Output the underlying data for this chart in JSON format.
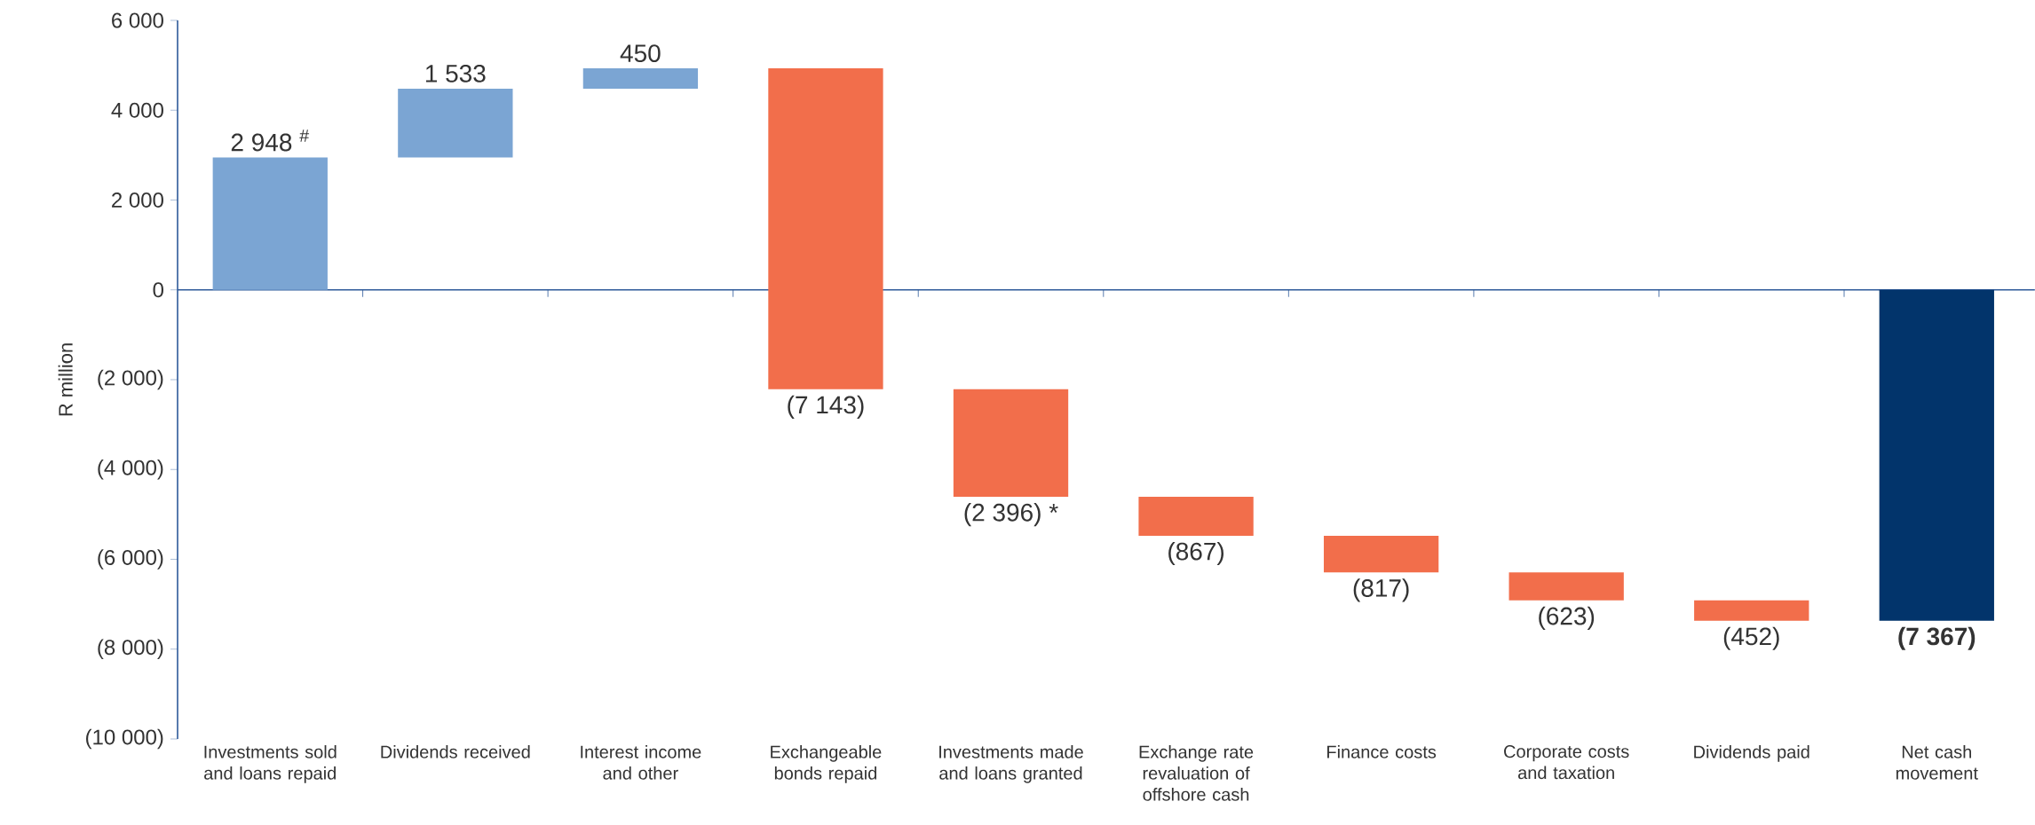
{
  "chart_data": {
    "type": "bar",
    "ylabel": "R million",
    "categories": [
      "Investments sold and loans repaid",
      "Dividends received",
      "Interest income and other",
      "Exchangeable bonds repaid",
      "Investments made and loans granted",
      "Exchange rate revaluation of offshore cash",
      "Finance costs",
      "Corporate costs and taxation",
      "Dividends paid",
      "Net cash movement"
    ],
    "values": [
      2948,
      1533,
      450,
      -7143,
      -2396,
      -867,
      -817,
      -623,
      -452,
      -7367
    ],
    "base": [
      0,
      2948,
      4481,
      4931,
      -2212,
      -4608,
      -5475,
      -6292,
      -6915,
      0
    ],
    "colors": [
      "#7ba5d3",
      "#7ba5d3",
      "#7ba5d3",
      "#f26e4b",
      "#f26e4b",
      "#f26e4b",
      "#f26e4b",
      "#f26e4b",
      "#f26e4b",
      "#02346b"
    ],
    "value_labels": [
      "2 948 $^{#}$",
      "1 533",
      "450",
      "(7 143)",
      "(2 396) *",
      "(867)",
      "(817)",
      "(623)",
      "(452)",
      "**(7 367)**"
    ],
    "ref_lines": [
      {
        "axis": "y",
        "value": 0,
        "color": "#2e5a9a"
      }
    ],
    "ylim": [
      -10000,
      6000
    ],
    "yticks": [
      {
        "value": 6000,
        "label": "6 000"
      },
      {
        "value": 4000,
        "label": "4 000"
      },
      {
        "value": 2000,
        "label": "2 000"
      },
      0,
      {
        "value": -2000,
        "label": "(2 000)"
      },
      {
        "value": -4000,
        "label": "(4 000)"
      },
      {
        "value": -6000,
        "label": "(6 000)"
      },
      {
        "value": -8000,
        "label": "(8 000)"
      },
      {
        "value": -10000,
        "label": "(10 000)"
      }
    ]
  }
}
